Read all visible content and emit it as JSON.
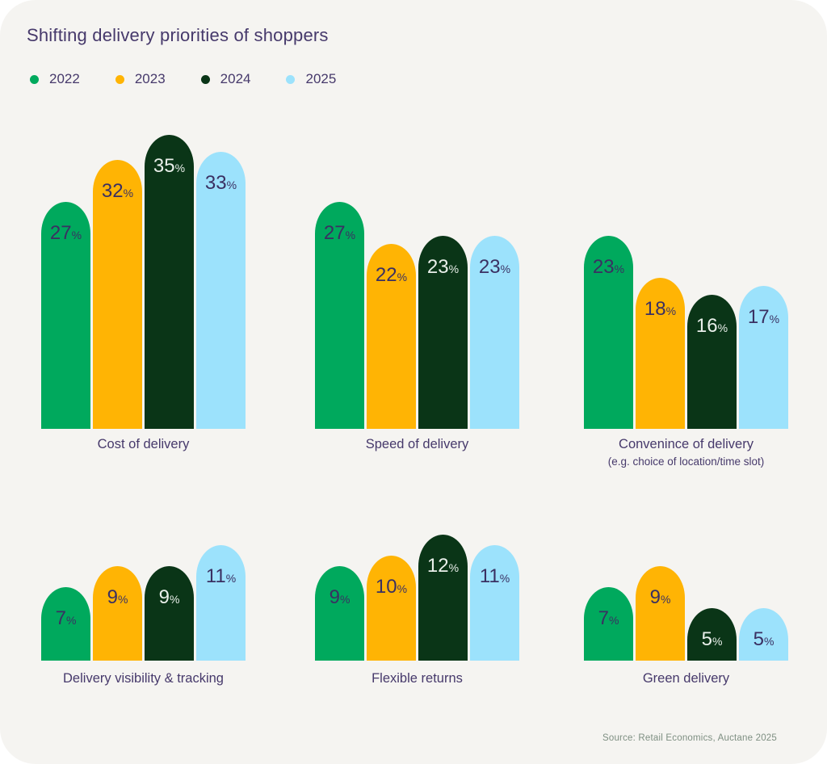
{
  "title": "Shifting delivery priorities of shoppers",
  "legend": [
    {
      "label": "2022",
      "color": "#00A95D"
    },
    {
      "label": "2023",
      "color": "#FFB404"
    },
    {
      "label": "2024",
      "color": "#0A3517"
    },
    {
      "label": "2025",
      "color": "#9CE2FC"
    }
  ],
  "source": "Source: Retail Economics, Auctane 2025",
  "chart_data": {
    "type": "bar",
    "series_names": [
      "2022",
      "2023",
      "2024",
      "2025"
    ],
    "series_colors": [
      "#00A95D",
      "#FFB404",
      "#0A3517",
      "#9CE2FC"
    ],
    "value_suffix": "%",
    "ylim_row1": [
      0,
      35
    ],
    "ylim_row2": [
      0,
      12
    ],
    "grid": false,
    "legend_position": "top-left",
    "groups": [
      {
        "label": "Cost of delivery",
        "sublabel": "",
        "values": [
          27,
          32,
          35,
          33
        ]
      },
      {
        "label": "Speed of delivery",
        "sublabel": "",
        "values": [
          27,
          22,
          23,
          23
        ]
      },
      {
        "label": "Convenince of delivery",
        "sublabel": "(e.g. choice of location/time slot)",
        "values": [
          23,
          18,
          16,
          17
        ]
      },
      {
        "label": "Delivery visibility & tracking",
        "sublabel": "",
        "values": [
          7,
          9,
          9,
          11
        ]
      },
      {
        "label": "Flexible returns",
        "sublabel": "",
        "values": [
          9,
          10,
          12,
          11
        ]
      },
      {
        "label": "Green delivery",
        "sublabel": "",
        "values": [
          7,
          9,
          5,
          5
        ]
      }
    ]
  }
}
